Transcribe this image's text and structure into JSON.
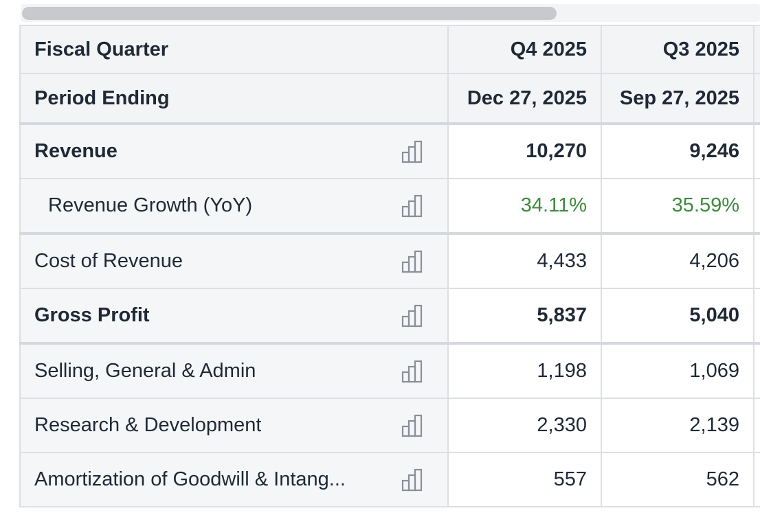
{
  "table": {
    "header": {
      "quarter_label": "Fiscal Quarter",
      "period_label": "Period Ending",
      "columns": [
        {
          "quarter": "Q4 2025",
          "period": "Dec 27, 2025"
        },
        {
          "quarter": "Q3 2025",
          "period": "Sep 27, 2025"
        }
      ]
    },
    "rows": [
      {
        "label": "Revenue",
        "values": [
          "10,270",
          "9,246"
        ],
        "icon": "bar-chart-icon"
      },
      {
        "label": "Revenue Growth (YoY)",
        "values": [
          "34.11%",
          "35.59%"
        ],
        "icon": "bar-chart-icon"
      },
      {
        "label": "Cost of Revenue",
        "values": [
          "4,433",
          "4,206"
        ],
        "icon": "bar-chart-icon"
      },
      {
        "label": "Gross Profit",
        "values": [
          "5,837",
          "5,040"
        ],
        "icon": "bar-chart-icon"
      },
      {
        "label": "Selling, General & Admin",
        "values": [
          "1,198",
          "1,069"
        ],
        "icon": "bar-chart-icon"
      },
      {
        "label": "Research & Development",
        "values": [
          "2,330",
          "2,139"
        ],
        "icon": "bar-chart-icon"
      },
      {
        "label": "Amortization of Goodwill & Intang...",
        "values": [
          "557",
          "562"
        ],
        "icon": "bar-chart-icon"
      }
    ]
  },
  "colors": {
    "growth_positive": "#3d8b3d",
    "header_bg": "#f3f4f6",
    "border": "#dcdfe3"
  }
}
